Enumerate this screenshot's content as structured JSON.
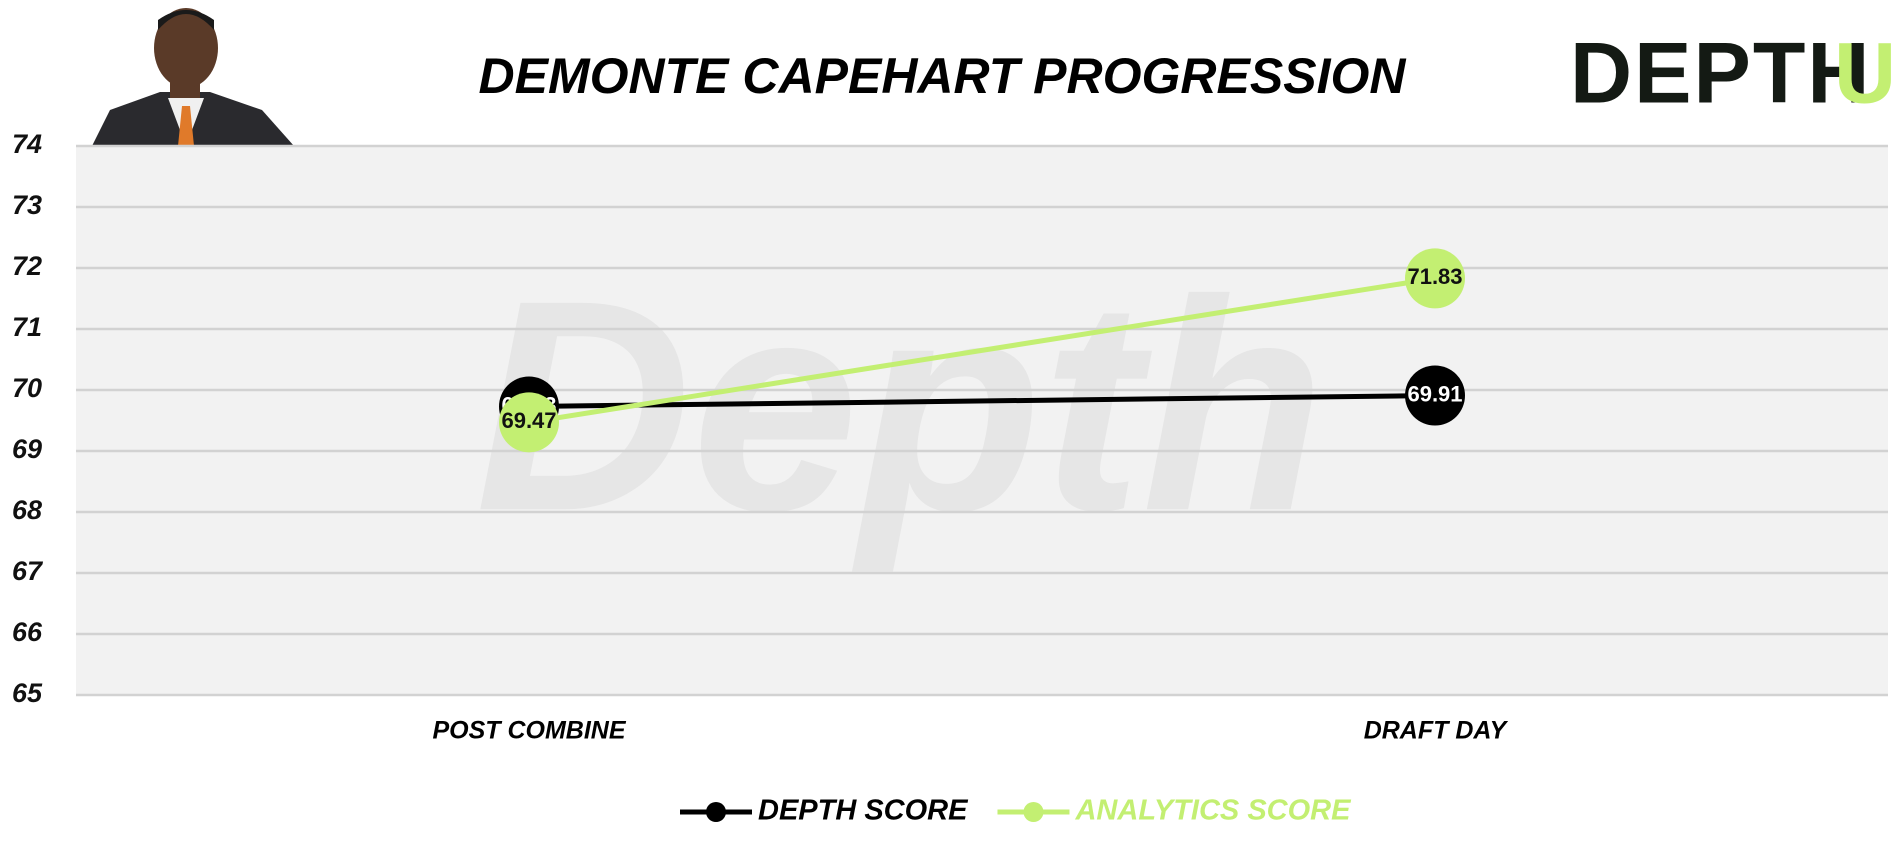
{
  "chart_data": {
    "type": "line",
    "title": "DEMONTE CAPEHART PROGRESSION",
    "logo": {
      "main": "DEPTH",
      "accent": "U"
    },
    "watermark": "Depth",
    "categories": [
      "POST COMBINE",
      "DRAFT DAY"
    ],
    "series": [
      {
        "name": "DEPTH SCORE",
        "color": "#000000",
        "label_color": "#ffffff",
        "values": [
          69.73,
          69.91
        ]
      },
      {
        "name": "ANALYTICS SCORE",
        "color": "#c3ef72",
        "label_color": "#111111",
        "values": [
          69.47,
          71.83
        ]
      }
    ],
    "ylim": [
      65,
      74
    ],
    "yticks": [
      65,
      66,
      67,
      68,
      69,
      70,
      71,
      72,
      73,
      74
    ],
    "grid": true
  }
}
